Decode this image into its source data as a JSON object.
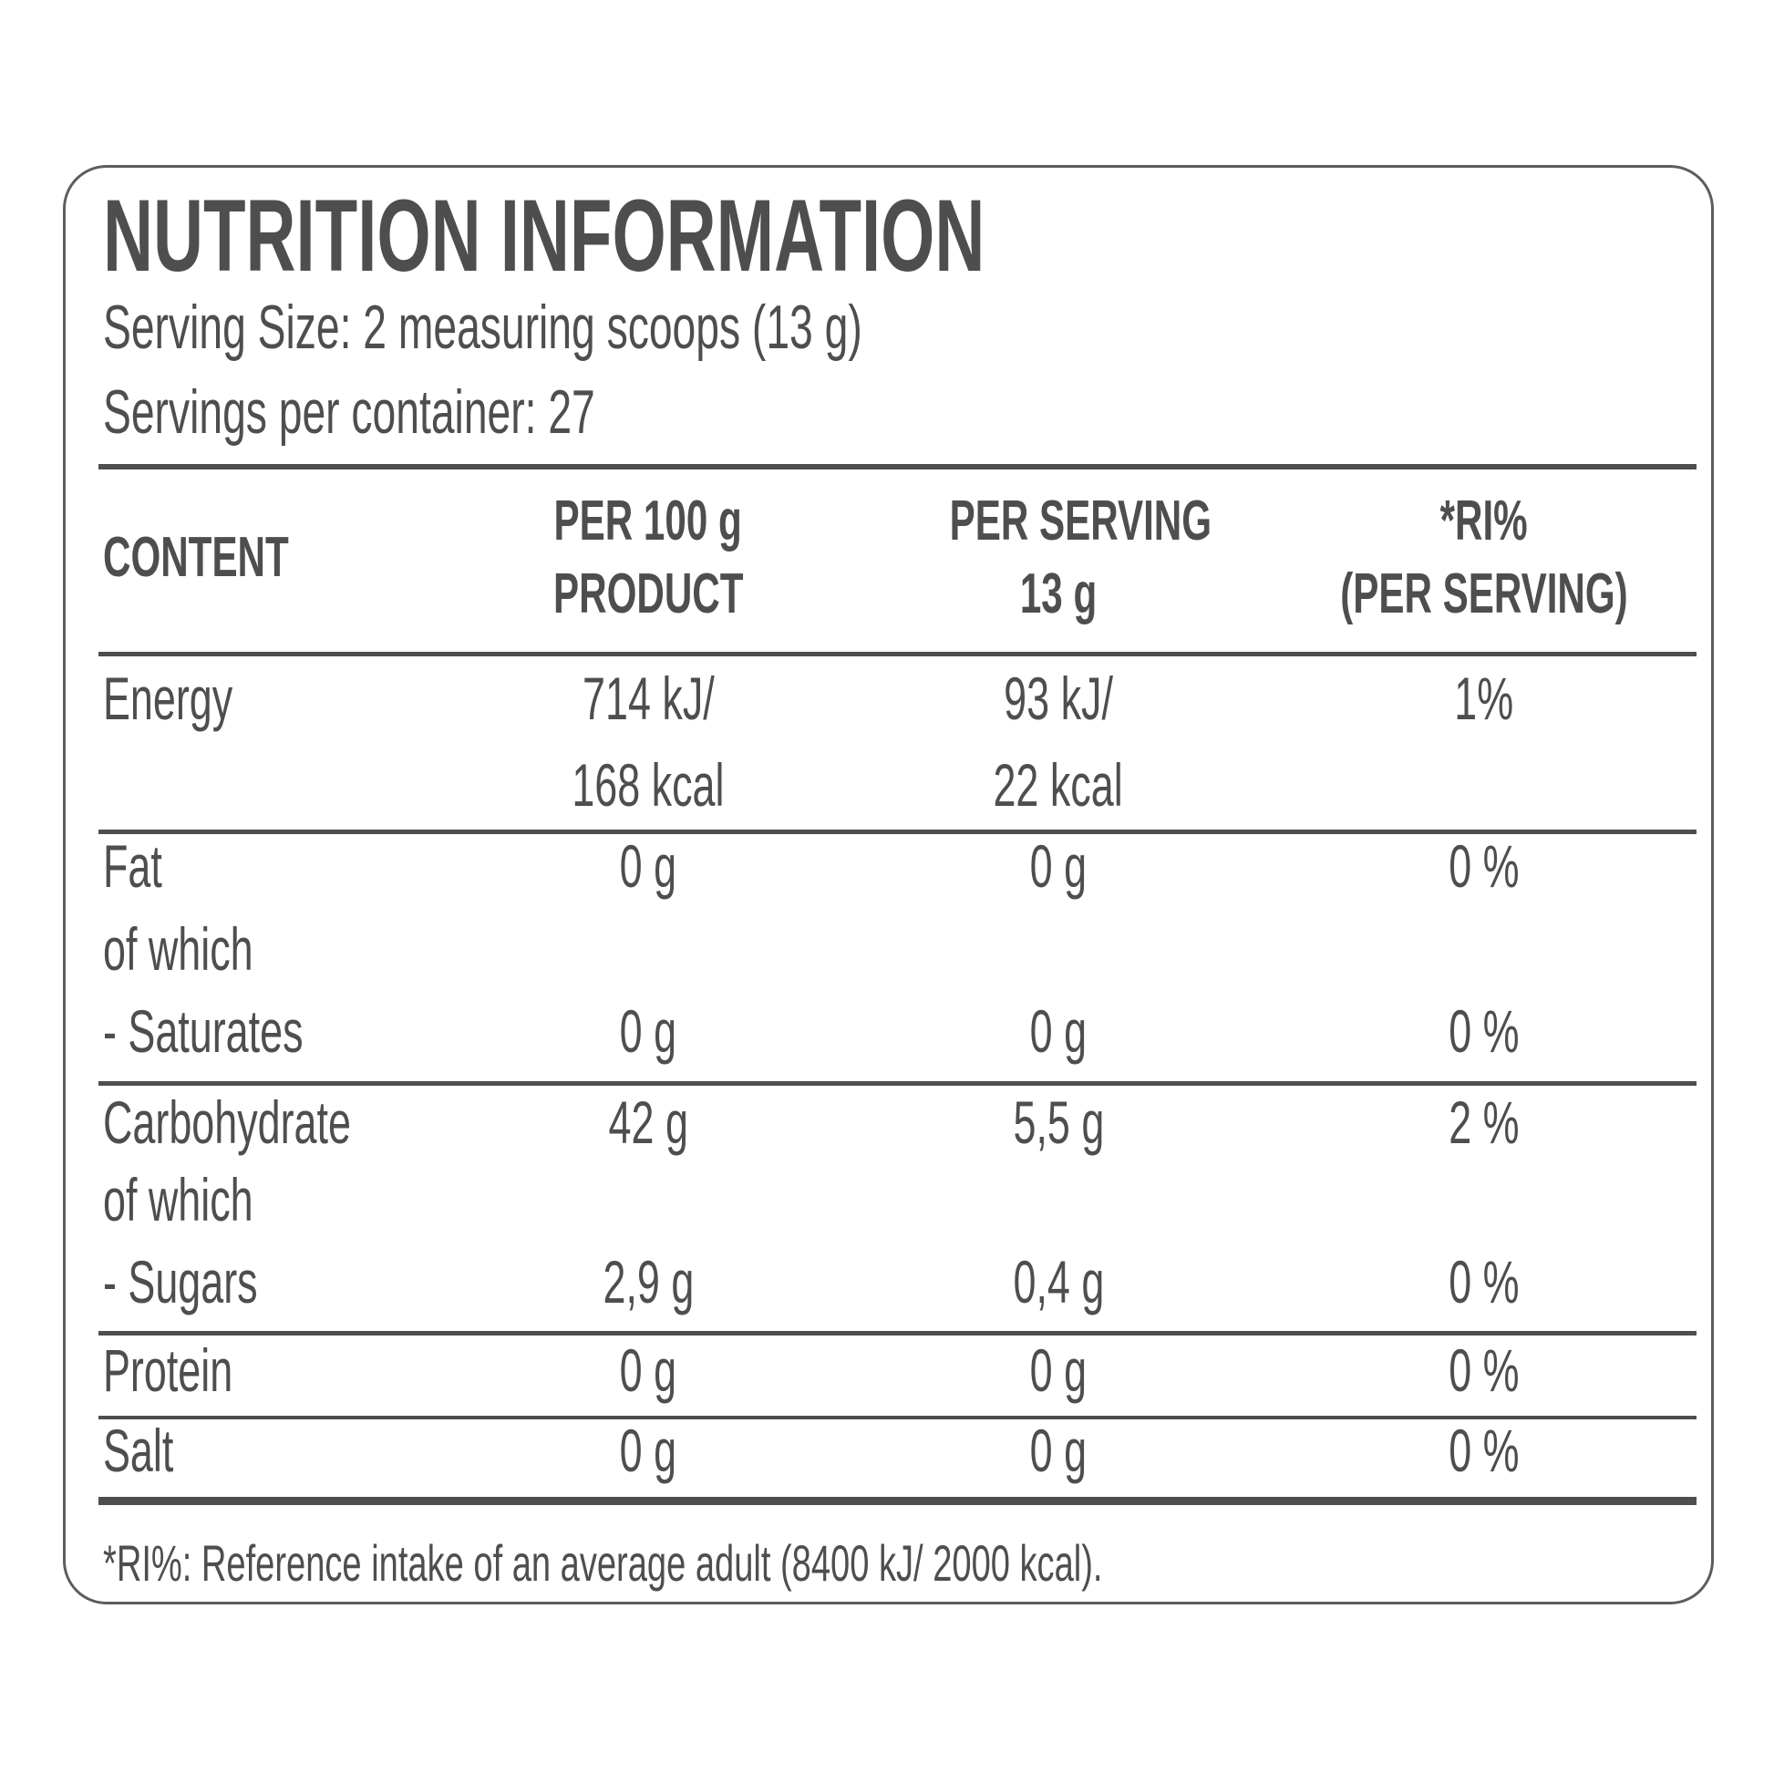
{
  "nutrition_label": {
    "title": "NUTRITION INFORMATION",
    "serving_size": "Serving Size: 2 measuring scoops (13 g)",
    "servings_per_container": "Servings per container: 27",
    "header": {
      "col1": "CONTENT",
      "col2_line1": "PER 100 g",
      "col2_line2": "PRODUCT",
      "col3_line1": "PER SERVING",
      "col3_line2": "13 g",
      "col4_line1": "*RI%",
      "col4_line2": "(PER SERVING)"
    },
    "rows": [
      {
        "label": "Energy",
        "per100": "714 kJ/",
        "per100_2": "168 kcal",
        "per_serving": "93 kJ/",
        "per_serving_2": "22 kcal",
        "ri": "1%"
      },
      {
        "label": "Fat",
        "per100": "0 g",
        "per_serving": "0 g",
        "ri": "0 %"
      },
      {
        "label": "of which"
      },
      {
        "label": "- Saturates",
        "per100": "0 g",
        "per_serving": "0 g",
        "ri": "0 %"
      },
      {
        "label": "Carbohydrate",
        "per100": "42 g",
        "per_serving": "5,5 g",
        "ri": "2 %"
      },
      {
        "label": "of which"
      },
      {
        "label": "- Sugars",
        "per100": "2,9 g",
        "per_serving": "0,4 g",
        "ri": "0 %"
      },
      {
        "label": "Protein",
        "per100": "0 g",
        "per_serving": "0 g",
        "ri": "0 %"
      },
      {
        "label": "Salt",
        "per100": "0 g",
        "per_serving": "0 g",
        "ri": "0 %"
      }
    ],
    "footnote": "*RI%: Reference intake of an average adult (8400 kJ/ 2000 kcal).",
    "colors": {
      "text": "#4d4e50",
      "rule": "#4d4e50",
      "border": "#5b5d5f",
      "background": "#ffffff"
    }
  }
}
